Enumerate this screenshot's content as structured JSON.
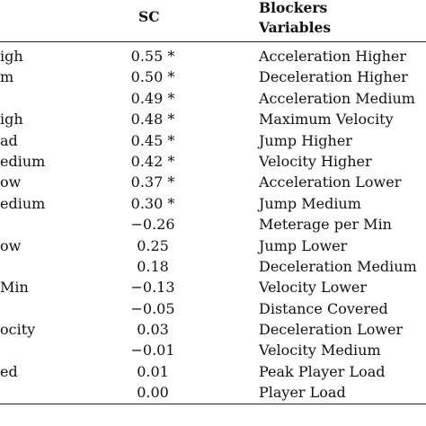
{
  "header": {
    "sc": "SC",
    "blockers": "Blockers",
    "variables": "Variables"
  },
  "rows": [
    {
      "left": "igh",
      "sc": "0.55 *",
      "variable": "Acceleration Higher"
    },
    {
      "left": "m",
      "sc": "0.50 *",
      "variable": "Deceleration Higher"
    },
    {
      "left": "",
      "sc": "0.49 *",
      "variable": "Acceleration Medium"
    },
    {
      "left": "igh",
      "sc": "0.48 *",
      "variable": "Maximum Velocity"
    },
    {
      "left": "ad",
      "sc": "0.45 *",
      "variable": "Jump Higher"
    },
    {
      "left": "edium",
      "sc": "0.42 *",
      "variable": "Velocity Higher"
    },
    {
      "left": "ow",
      "sc": "0.37 *",
      "variable": "Acceleration Lower"
    },
    {
      "left": "edium",
      "sc": "0.30 *",
      "variable": "Jump Medium"
    },
    {
      "left": "",
      "sc": "−0.26",
      "variable": "Meterage per Min"
    },
    {
      "left": "ow",
      "sc": "0.25",
      "variable": "Jump Lower"
    },
    {
      "left": "",
      "sc": "0.18",
      "variable": "Deceleration Medium"
    },
    {
      "left": "Min",
      "sc": "−0.13",
      "variable": "Velocity Lower"
    },
    {
      "left": "",
      "sc": "−0.05",
      "variable": "Distance Covered"
    },
    {
      "left": "ocity",
      "sc": "0.03",
      "variable": "Deceleration Lower"
    },
    {
      "left": "",
      "sc": "−0.01",
      "variable": "Velocity Medium"
    },
    {
      "left": "ed",
      "sc": "0.01",
      "variable": "Peak Player Load"
    },
    {
      "left": "",
      "sc": "0.00",
      "variable": "Player Load"
    }
  ]
}
